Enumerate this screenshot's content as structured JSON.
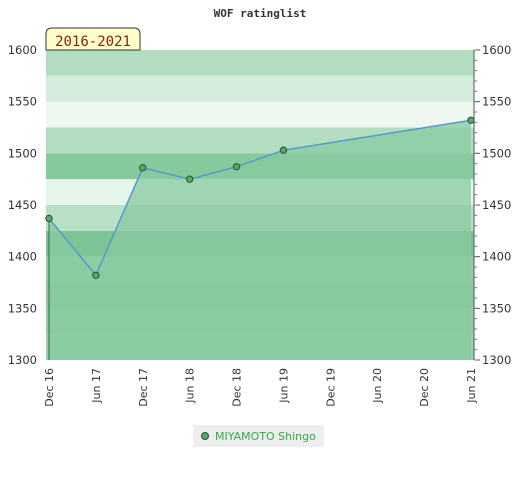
{
  "chart_data": {
    "type": "area",
    "title": "WOF ratinglist",
    "badge": "2016-2021",
    "x_ticks": [
      "Dec 16",
      "Jun 17",
      "Dec 17",
      "Jun 18",
      "Dec 18",
      "Jun 19",
      "Dec 19",
      "Jun 20",
      "Dec 20",
      "Jun 21"
    ],
    "y_ticks": [
      "1300",
      "1350",
      "1400",
      "1450",
      "1500",
      "1550",
      "1600"
    ],
    "ylim": [
      1300,
      1600
    ],
    "series": [
      {
        "name": "MIYAMOTO Shingo",
        "points": [
          {
            "x": "Dec 16",
            "y": 1437
          },
          {
            "x": "Jun 17",
            "y": 1382
          },
          {
            "x": "Dec 17",
            "y": 1486
          },
          {
            "x": "Jun 18",
            "y": 1475
          },
          {
            "x": "Dec 18",
            "y": 1487
          },
          {
            "x": "Jun 19",
            "y": 1503
          },
          {
            "x": "Jun 21",
            "y": 1532
          }
        ]
      }
    ],
    "colors": {
      "line": "#5599cc",
      "area": "#88c9a0",
      "marker": "#55aa66",
      "marker_edge": "#225533",
      "badge_bg": "#ffffcc"
    }
  }
}
